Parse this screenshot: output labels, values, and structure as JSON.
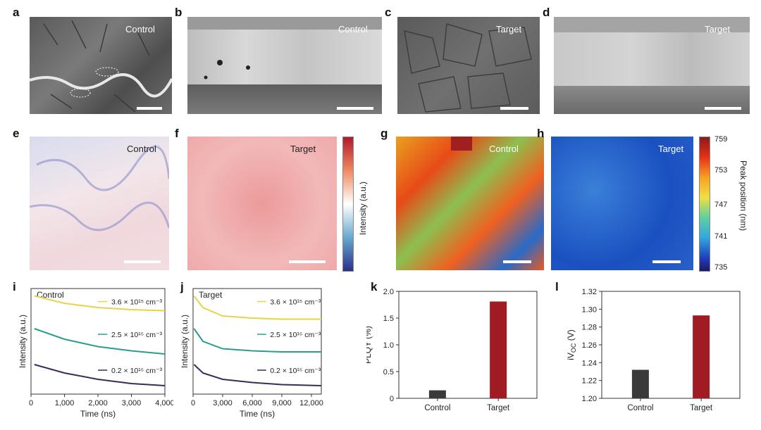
{
  "panels": {
    "a": {
      "letter": "a",
      "tag": "Control"
    },
    "b": {
      "letter": "b",
      "tag": "Control"
    },
    "c": {
      "letter": "c",
      "tag": "Target"
    },
    "d": {
      "letter": "d",
      "tag": "Target"
    },
    "e": {
      "letter": "e",
      "tag": "Control"
    },
    "f": {
      "letter": "f",
      "tag": "Target"
    },
    "g": {
      "letter": "g",
      "tag": "Control"
    },
    "h": {
      "letter": "h",
      "tag": "Target"
    },
    "i": {
      "letter": "i"
    },
    "j": {
      "letter": "j"
    },
    "k": {
      "letter": "k"
    },
    "l": {
      "letter": "l"
    }
  },
  "colorbar_intensity": {
    "label": "Intensity (a.u.)"
  },
  "colorbar_peak": {
    "label": "Peak position (nm)",
    "ticks": [
      "759",
      "753",
      "747",
      "741",
      "735"
    ]
  },
  "chart_data": [
    {
      "id": "i",
      "type": "line",
      "title": "Control",
      "xlabel": "Time (ns)",
      "ylabel": "Intensity (a.u.)",
      "xlim": [
        0,
        4000
      ],
      "xticks": [
        "0",
        "1,000",
        "2,000",
        "3,000",
        "4,000"
      ],
      "series": [
        {
          "name": "3.6 × 10¹⁵ cm⁻³",
          "color": "#e8d24a",
          "x": [
            100,
            1000,
            2000,
            3000,
            4000
          ],
          "y": [
            0.93,
            0.86,
            0.82,
            0.8,
            0.79
          ]
        },
        {
          "name": "2.5 × 10¹⁵ cm⁻³",
          "color": "#2a9d8f",
          "x": [
            100,
            1000,
            2000,
            3000,
            4000
          ],
          "y": [
            0.62,
            0.52,
            0.45,
            0.41,
            0.38
          ]
        },
        {
          "name": "0.2 × 10¹⁵ cm⁻³",
          "color": "#3b2a5c",
          "x": [
            100,
            1000,
            2000,
            3000,
            4000
          ],
          "y": [
            0.28,
            0.2,
            0.14,
            0.1,
            0.08
          ]
        }
      ]
    },
    {
      "id": "j",
      "type": "line",
      "title": "Target",
      "xlabel": "Time (ns)",
      "ylabel": "Intensity (a.u.)",
      "xlim": [
        0,
        13000
      ],
      "xticks": [
        "0",
        "3,000",
        "6,000",
        "9,000",
        "12,000"
      ],
      "series": [
        {
          "name": "3.6 × 10¹⁵ cm⁻³",
          "color": "#e8d24a",
          "x": [
            100,
            1000,
            3000,
            6000,
            9000,
            13000
          ],
          "y": [
            0.93,
            0.82,
            0.74,
            0.72,
            0.71,
            0.71
          ]
        },
        {
          "name": "2.5 × 10¹⁵ cm⁻³",
          "color": "#2a9d8f",
          "x": [
            100,
            1000,
            3000,
            6000,
            9000,
            13000
          ],
          "y": [
            0.62,
            0.5,
            0.43,
            0.41,
            0.4,
            0.4
          ]
        },
        {
          "name": "0.2 × 10¹⁵ cm⁻³",
          "color": "#3b2a5c",
          "x": [
            100,
            1000,
            3000,
            6000,
            9000,
            13000
          ],
          "y": [
            0.28,
            0.2,
            0.14,
            0.11,
            0.09,
            0.08
          ]
        }
      ]
    },
    {
      "id": "k",
      "type": "bar",
      "ylabel": "PLQY (%)",
      "categories": [
        "Control",
        "Target"
      ],
      "values": [
        0.15,
        1.81
      ],
      "colors": [
        "#3a3a3a",
        "#a01c22"
      ],
      "ylim": [
        0,
        2.0
      ],
      "yticks": [
        "0",
        "0.5",
        "1.0",
        "1.5",
        "2.0"
      ]
    },
    {
      "id": "l",
      "type": "bar",
      "ylabel": "iV",
      "ylabel_sub": "OC",
      "ylabel_unit": " (V)",
      "categories": [
        "Control",
        "Target"
      ],
      "values": [
        1.232,
        1.293
      ],
      "colors": [
        "#3a3a3a",
        "#a01c22"
      ],
      "ylim": [
        1.2,
        1.32
      ],
      "yticks": [
        "1.20",
        "1.22",
        "1.24",
        "1.26",
        "1.28",
        "1.30",
        "1.32"
      ]
    }
  ]
}
